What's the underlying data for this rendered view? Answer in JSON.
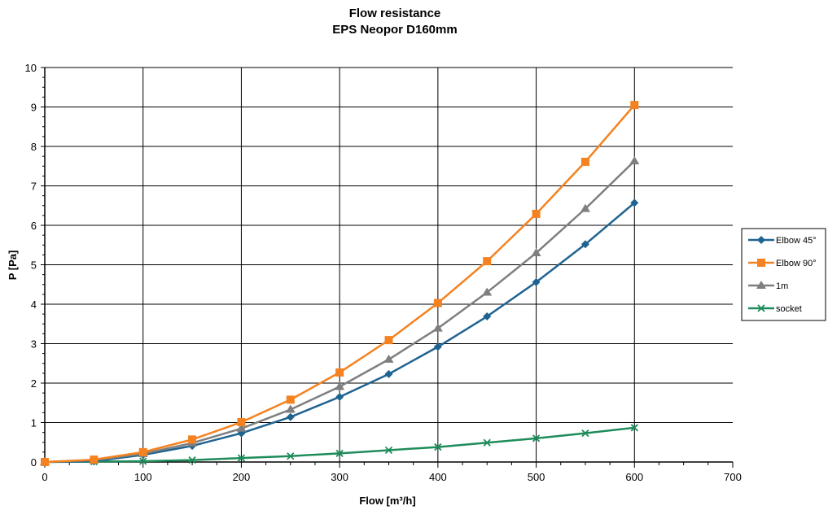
{
  "chart_data": {
    "type": "line",
    "title": "Flow resistance",
    "subtitle": "EPS Neopor D160mm",
    "xlabel": "Flow [m³/h]",
    "ylabel": "P [Pa]",
    "xlim": [
      0,
      700
    ],
    "ylim": [
      0,
      10
    ],
    "x_ticks": [
      "0",
      "100",
      "200",
      "300",
      "400",
      "500",
      "600",
      "700"
    ],
    "y_ticks": [
      "0",
      "1",
      "2",
      "3",
      "4",
      "5",
      "6",
      "7",
      "8",
      "9",
      "10"
    ],
    "grid": true,
    "legend_position": "right",
    "x": [
      0,
      50,
      100,
      150,
      200,
      250,
      300,
      350,
      400,
      450,
      500,
      550,
      600
    ],
    "series": [
      {
        "name": "Elbow 45°",
        "color": "#1f6391",
        "marker": "diamond",
        "values": [
          0,
          0.02,
          0.18,
          0.41,
          0.73,
          1.14,
          1.65,
          2.23,
          2.92,
          3.69,
          4.56,
          5.52,
          6.57
        ]
      },
      {
        "name": "Elbow 90°",
        "color": "#f58220",
        "marker": "square",
        "values": [
          0,
          0.06,
          0.25,
          0.57,
          1.01,
          1.58,
          2.27,
          3.09,
          4.03,
          5.09,
          6.29,
          7.61,
          9.05
        ]
      },
      {
        "name": "1m",
        "color": "#7f7f7f",
        "marker": "triangle",
        "values": [
          0,
          0.05,
          0.21,
          0.48,
          0.85,
          1.33,
          1.91,
          2.6,
          3.39,
          4.3,
          5.3,
          6.42,
          7.63
        ]
      },
      {
        "name": "socket",
        "color": "#1e8c5a",
        "marker": "x",
        "values": [
          0,
          0.01,
          0.02,
          0.05,
          0.1,
          0.15,
          0.22,
          0.3,
          0.38,
          0.49,
          0.6,
          0.73,
          0.87
        ]
      }
    ]
  }
}
